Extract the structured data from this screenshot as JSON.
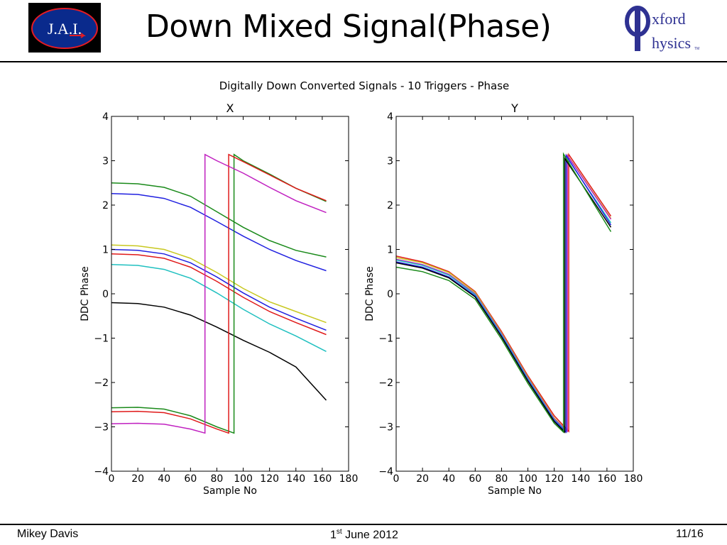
{
  "slide": {
    "title": "Down Mixed Signal(Phase)",
    "footer_author": "Mikey Davis",
    "footer_date_day": "1",
    "footer_date_suffix": "st",
    "footer_date_rest": " June 2012",
    "footer_page": "11/16"
  },
  "logos": {
    "left_text": "J.A.I.",
    "right_text_top": "xford",
    "right_text_bottom": "hysics",
    "right_tm": "TM",
    "left_ring_color": "#e31b23",
    "right_color": "#2e3192"
  },
  "figure": {
    "suptitle": "Digitally Down Converted Signals - 10 Triggers - Phase"
  },
  "chart_data": [
    {
      "type": "line",
      "title": "X",
      "xlabel": "Sample No",
      "ylabel": "DDC Phase",
      "xlim": [
        0,
        180
      ],
      "ylim": [
        -4,
        4
      ],
      "xticks": [
        "0",
        "20",
        "40",
        "60",
        "80",
        "100",
        "120",
        "140",
        "160",
        "180"
      ],
      "yticks": [
        "−4",
        "−3",
        "−2",
        "−1",
        "0",
        "1",
        "2",
        "3",
        "4"
      ],
      "grid": false,
      "series": [
        {
          "color": "#1a8a1a",
          "x": [
            0,
            20,
            40,
            60,
            80,
            100,
            120,
            140,
            163
          ],
          "y": [
            2.5,
            2.48,
            2.4,
            2.2,
            1.85,
            1.5,
            1.2,
            0.98,
            0.83
          ]
        },
        {
          "color": "#2020e0",
          "x": [
            0,
            20,
            40,
            60,
            80,
            100,
            120,
            140,
            163
          ],
          "y": [
            2.26,
            2.24,
            2.15,
            1.95,
            1.63,
            1.3,
            1.0,
            0.75,
            0.52
          ]
        },
        {
          "color": "#c8c820",
          "x": [
            0,
            20,
            40,
            60,
            80,
            100,
            120,
            140,
            163
          ],
          "y": [
            1.1,
            1.08,
            1.0,
            0.8,
            0.48,
            0.12,
            -0.18,
            -0.4,
            -0.65
          ]
        },
        {
          "color": "#2020e0",
          "x": [
            0,
            20,
            40,
            60,
            80,
            100,
            120,
            140,
            163
          ],
          "y": [
            1.0,
            0.98,
            0.9,
            0.7,
            0.38,
            0.02,
            -0.3,
            -0.55,
            -0.82
          ]
        },
        {
          "color": "#e01a1a",
          "x": [
            0,
            20,
            40,
            60,
            80,
            100,
            120,
            140,
            163
          ],
          "y": [
            0.9,
            0.88,
            0.8,
            0.6,
            0.28,
            -0.08,
            -0.4,
            -0.65,
            -0.92
          ]
        },
        {
          "color": "#20c0c0",
          "x": [
            0,
            20,
            40,
            60,
            80,
            100,
            120,
            140,
            163
          ],
          "y": [
            0.66,
            0.64,
            0.55,
            0.35,
            0.02,
            -0.35,
            -0.68,
            -0.95,
            -1.3
          ]
        },
        {
          "color": "#000000",
          "x": [
            0,
            20,
            40,
            60,
            80,
            100,
            120,
            140,
            163
          ],
          "y": [
            -0.2,
            -0.22,
            -0.3,
            -0.48,
            -0.75,
            -1.05,
            -1.32,
            -1.65,
            -2.4
          ]
        },
        {
          "color": "#1a8a1a",
          "x": [
            0,
            20,
            40,
            60,
            80,
            93,
            93,
            100,
            120,
            140,
            163
          ],
          "y": [
            -2.57,
            -2.56,
            -2.6,
            -2.75,
            -3.0,
            -3.14,
            3.14,
            3.0,
            2.7,
            2.38,
            2.08
          ]
        },
        {
          "color": "#e01a1a",
          "x": [
            0,
            20,
            40,
            60,
            80,
            89,
            89,
            100,
            120,
            140,
            163
          ],
          "y": [
            -2.66,
            -2.65,
            -2.68,
            -2.82,
            -3.05,
            -3.14,
            3.14,
            2.98,
            2.68,
            2.38,
            2.1
          ]
        },
        {
          "color": "#c020c0",
          "x": [
            0,
            20,
            40,
            60,
            71,
            71,
            80,
            100,
            120,
            140,
            163
          ],
          "y": [
            -2.93,
            -2.92,
            -2.94,
            -3.05,
            -3.14,
            3.14,
            3.0,
            2.72,
            2.4,
            2.1,
            1.83
          ]
        }
      ]
    },
    {
      "type": "line",
      "title": "Y",
      "xlabel": "Sample No",
      "ylabel": "DDC Phase",
      "xlim": [
        0,
        180
      ],
      "ylim": [
        -4,
        4
      ],
      "xticks": [
        "0",
        "20",
        "40",
        "60",
        "80",
        "100",
        "120",
        "140",
        "160",
        "180"
      ],
      "yticks": [
        "−4",
        "−3",
        "−2",
        "−1",
        "0",
        "1",
        "2",
        "3",
        "4"
      ],
      "grid": false,
      "series": [
        {
          "color": "#e01a1a",
          "x": [
            0,
            20,
            40,
            60,
            80,
            100,
            120,
            131,
            131,
            163
          ],
          "y": [
            0.85,
            0.72,
            0.5,
            0.05,
            -0.85,
            -1.85,
            -2.75,
            -3.1,
            3.14,
            1.75
          ]
        },
        {
          "color": "#c8c820",
          "x": [
            0,
            20,
            40,
            60,
            80,
            100,
            120,
            130,
            130,
            163
          ],
          "y": [
            0.82,
            0.7,
            0.48,
            0.03,
            -0.88,
            -1.88,
            -2.8,
            -3.1,
            3.13,
            1.7
          ]
        },
        {
          "color": "#c020c0",
          "x": [
            0,
            20,
            40,
            60,
            80,
            100,
            120,
            130,
            130,
            163
          ],
          "y": [
            0.78,
            0.66,
            0.44,
            0.0,
            -0.9,
            -1.9,
            -2.82,
            -3.1,
            3.12,
            1.68
          ]
        },
        {
          "color": "#20c0c0",
          "x": [
            0,
            20,
            40,
            60,
            80,
            100,
            120,
            129,
            129,
            163
          ],
          "y": [
            0.76,
            0.64,
            0.42,
            -0.02,
            -0.92,
            -1.92,
            -2.84,
            -3.1,
            3.1,
            1.6
          ]
        },
        {
          "color": "#2020e0",
          "x": [
            0,
            20,
            40,
            60,
            80,
            100,
            120,
            129,
            129,
            163
          ],
          "y": [
            0.72,
            0.6,
            0.38,
            -0.05,
            -0.95,
            -1.95,
            -2.86,
            -3.12,
            3.12,
            1.55
          ]
        },
        {
          "color": "#000000",
          "x": [
            0,
            20,
            40,
            60,
            80,
            100,
            120,
            128,
            128,
            163
          ],
          "y": [
            0.7,
            0.58,
            0.36,
            -0.07,
            -0.97,
            -1.97,
            -2.88,
            -3.12,
            3.05,
            1.5
          ]
        },
        {
          "color": "#1a8a1a",
          "x": [
            0,
            20,
            40,
            60,
            80,
            100,
            120,
            127,
            127,
            163
          ],
          "y": [
            0.6,
            0.5,
            0.3,
            -0.12,
            -1.02,
            -2.02,
            -2.92,
            -3.12,
            3.15,
            1.4
          ]
        }
      ]
    }
  ]
}
